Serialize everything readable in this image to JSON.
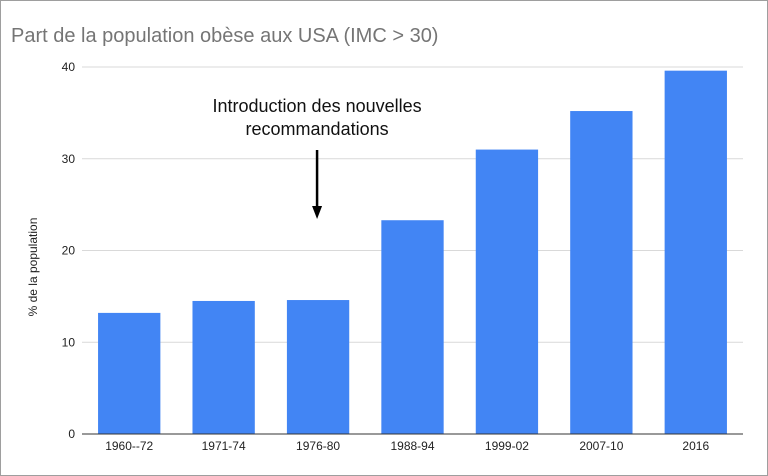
{
  "chart_data": {
    "type": "bar",
    "title": "Part de la population obèse aux USA (IMC > 30)",
    "xlabel": "",
    "ylabel": "% de la population",
    "categories": [
      "1960--72",
      "1971-74",
      "1976-80",
      "1988-94",
      "1999-02",
      "2007-10",
      "2016"
    ],
    "series": [
      {
        "values": [
          13.2,
          14.5,
          14.6,
          23.3,
          31.0,
          35.2,
          39.6
        ]
      }
    ],
    "ylim": [
      0,
      40
    ],
    "yticks": [
      0,
      10,
      20,
      30,
      40
    ],
    "grid": true,
    "legend": "none",
    "bar_color": "#4285f4",
    "annotation": {
      "lines": [
        "Introduction des nouvelles",
        "recommandations"
      ],
      "category": "1976-80",
      "arrow": "down"
    }
  }
}
